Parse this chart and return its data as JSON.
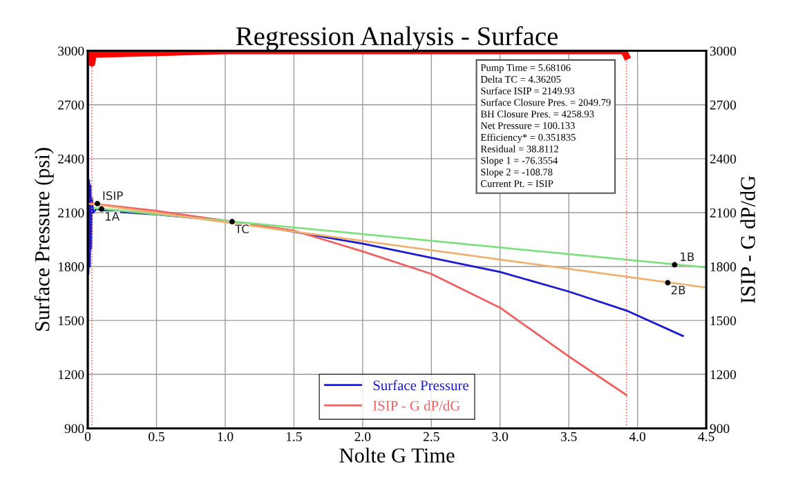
{
  "chart_data": {
    "type": "line",
    "title": "Regression Analysis - Surface",
    "xlabel": "Nolte G Time",
    "ylabel": "Surface Pressure (psi)",
    "y2label": "ISIP - G dP/dG",
    "xlim": [
      0,
      4.5
    ],
    "xticks": [
      0,
      {
        "value": 0.5,
        "label": "0.5"
      },
      {
        "value": 1,
        "label": "1.0"
      },
      {
        "value": 1.5,
        "label": "1.5"
      },
      {
        "value": 2,
        "label": "2.0"
      },
      {
        "value": 2.5,
        "label": "2.5"
      },
      {
        "value": 3,
        "label": "3.0"
      },
      {
        "value": 3.5,
        "label": "3.5"
      },
      {
        "value": 4,
        "label": "4.0"
      },
      {
        "value": 4.5,
        "label": "4.5"
      }
    ],
    "ylim": [
      900,
      3000
    ],
    "yticks": [
      900,
      1200,
      1500,
      1800,
      2100,
      2400,
      2700,
      3000
    ],
    "y2lim": [
      900,
      3000
    ],
    "y2ticks": [
      900,
      1200,
      1500,
      1800,
      2100,
      2400,
      2700,
      3000
    ],
    "grid": true,
    "legend": "bottom",
    "marker": "none",
    "line_style": "solid",
    "series": [
      {
        "name": "Surface Pressure",
        "color": "#1a1ad0",
        "x": [
          0,
          0.005,
          0.01,
          0.015,
          0.02,
          0.025,
          0.03,
          0.04,
          0.06,
          0.1,
          0.2,
          0.5,
          1.05,
          1.5,
          2.0,
          2.5,
          3.0,
          3.5,
          3.92,
          4.33
        ],
        "values": [
          3000,
          1760,
          2280,
          1800,
          2250,
          1900,
          2180,
          2100,
          2120,
          2115,
          2105,
          2090,
          2050,
          1994,
          1927,
          1849,
          1770,
          1661,
          1555,
          1414
        ]
      },
      {
        "name": "ISIP - G dP/dG",
        "color": "#f06060",
        "x": [
          0.03,
          0.5,
          1.0,
          1.5,
          2.0,
          2.5,
          3.0,
          3.5,
          3.92
        ],
        "values": [
          2150,
          2110,
          2055,
          2000,
          1884,
          1759,
          1571,
          1300,
          1085
        ]
      },
      {
        "color": "#ff0000",
        "axis": "y2",
        "x": [
          0,
          0.02,
          0.03,
          0.04,
          1.0,
          2.0,
          3.0,
          3.9,
          3.92
        ],
        "values": [
          3000,
          2950,
          2930,
          2980,
          3000,
          3000,
          3000,
          3000,
          2970
        ]
      },
      {
        "color": "#7ee07e",
        "x": [
          0.05,
          4.5
        ],
        "values": [
          2125,
          1795
        ]
      },
      {
        "color": "#f0b070",
        "x": [
          0,
          4.5
        ],
        "values": [
          2150,
          1683
        ]
      },
      {
        "type": "scatter",
        "color": "#000000",
        "marker": "circle",
        "x": [
          0.07,
          0.1,
          1.05,
          4.27,
          4.22
        ],
        "values": [
          2150,
          2120,
          2050,
          1810,
          1710
        ]
      }
    ],
    "ref_lines": [
      {
        "axis": "x",
        "value": 0.03,
        "color": "#ff6060",
        "line_style": "dotted"
      },
      {
        "axis": "x",
        "value": 3.92,
        "color": "#ff6060",
        "line_style": "dotted"
      }
    ],
    "annotations": [
      {
        "text": "ISIP",
        "x": 0.07,
        "y": 2150
      },
      {
        "text": "1A",
        "x": 0.1,
        "y": 2120
      },
      {
        "text": "TC",
        "x": 1.05,
        "y": 2050
      },
      {
        "text": "1B",
        "x": 4.27,
        "y": 1810
      },
      {
        "text": "2B",
        "x": 4.22,
        "y": 1710
      },
      "Pump Time = 5.68106",
      "Delta TC = 4.36205",
      "Surface ISIP = 2149.93",
      "Surface Closure Pres. = 2049.79",
      "BH Closure Pres. = 4258.93",
      "Net Pressure = 100.133",
      "Efficiency* = 0.351835",
      "Residual = 38.8112",
      "Slope 1 = -76.3554",
      "Slope 2 = -108.78",
      "Current Pt. = ISIP"
    ]
  }
}
